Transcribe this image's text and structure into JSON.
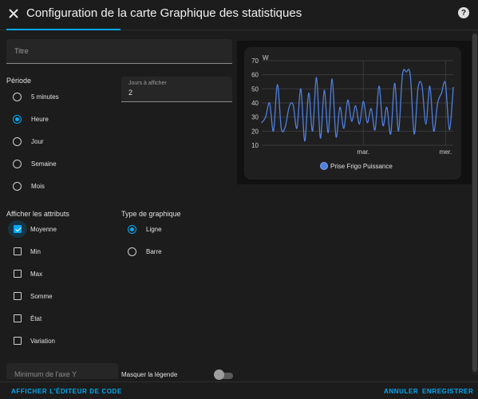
{
  "dialog": {
    "title": "Configuration de la carte Graphique des statistiques",
    "close_icon": "close-icon",
    "help_icon": "help-icon"
  },
  "form": {
    "title_placeholder": "Titre",
    "period_label": "Période",
    "period_options": [
      {
        "label": "5 minutes",
        "selected": false
      },
      {
        "label": "Heure",
        "selected": true
      },
      {
        "label": "Jour",
        "selected": false
      },
      {
        "label": "Semaine",
        "selected": false
      },
      {
        "label": "Mois",
        "selected": false
      }
    ],
    "days_label": "Jours à afficher",
    "days_value": "2",
    "attributes_label": "Afficher les attributs",
    "attributes": [
      {
        "label": "Moyenne",
        "checked": true
      },
      {
        "label": "Min",
        "checked": false
      },
      {
        "label": "Max",
        "checked": false
      },
      {
        "label": "Somme",
        "checked": false
      },
      {
        "label": "État",
        "checked": false
      },
      {
        "label": "Variation",
        "checked": false
      }
    ],
    "chart_type_label": "Type de graphique",
    "chart_types": [
      {
        "label": "Ligne",
        "selected": true
      },
      {
        "label": "Barre",
        "selected": false
      }
    ],
    "ymin_placeholder": "Minimum de l'axe Y",
    "hide_legend_label": "Masquer la légende",
    "hide_legend_on": false
  },
  "footer": {
    "code_editor_label": "AFFICHER L'ÉDITEUR DE CODE",
    "cancel_label": "ANNULER",
    "save_label": "ENREGISTRER"
  },
  "colors": {
    "accent": "#03a9f4",
    "series": "#4f7fe0",
    "background": "#1c1c1c"
  },
  "chart_data": {
    "type": "line",
    "ylabel": "W",
    "yticks": [
      "70",
      "60",
      "50",
      "40",
      "30",
      "20",
      "10"
    ],
    "xticks": [
      "mar.",
      "mer."
    ],
    "ylim": [
      10,
      70
    ],
    "grid": true,
    "legend": "bottom-center",
    "series": [
      {
        "name": "Prise Frigo Puissance",
        "x": [
          0,
          1,
          2,
          3,
          4,
          5,
          6,
          7,
          8,
          9,
          10,
          11,
          12,
          13,
          14,
          15,
          16,
          17,
          18,
          19,
          20,
          21,
          22,
          23,
          24,
          25,
          26,
          27,
          28,
          29,
          30,
          31,
          32,
          33,
          34,
          35,
          36,
          37,
          38,
          39,
          40,
          41,
          42,
          43,
          44,
          45,
          46,
          47,
          48,
          49
        ],
        "values": [
          26,
          30,
          40,
          20,
          53,
          22,
          23,
          37,
          39,
          22,
          50,
          13,
          47,
          20,
          58,
          15,
          49,
          19,
          57,
          16,
          37,
          22,
          42,
          27,
          38,
          25,
          41,
          26,
          36,
          21,
          52,
          24,
          37,
          18,
          54,
          20,
          60,
          62,
          60,
          18,
          51,
          52,
          25,
          52,
          20,
          40,
          47,
          54,
          21,
          51
        ]
      }
    ]
  }
}
